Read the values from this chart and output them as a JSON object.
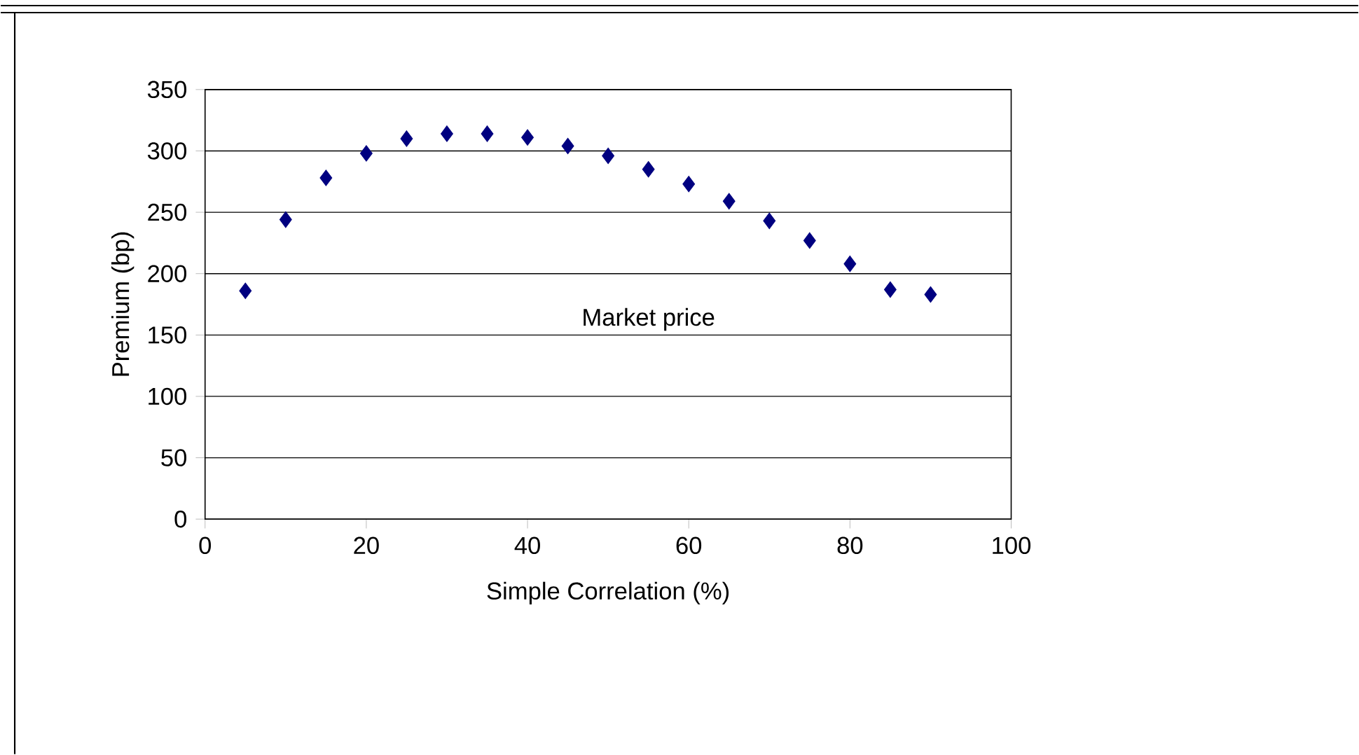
{
  "chart_data": {
    "type": "scatter",
    "xlabel": "Simple Correlation (%)",
    "ylabel": "Premium (bp)",
    "x": [
      5,
      10,
      15,
      20,
      25,
      30,
      35,
      40,
      45,
      50,
      55,
      60,
      65,
      70,
      75,
      80,
      85,
      90
    ],
    "series": [
      {
        "name": "Market price",
        "color": "#000080",
        "values": [
          186,
          244,
          278,
          298,
          310,
          314,
          314,
          311,
          304,
          296,
          285,
          273,
          259,
          243,
          227,
          208,
          187,
          183
        ]
      }
    ],
    "xlim": [
      0,
      100
    ],
    "xticks": [
      0,
      20,
      40,
      60,
      80,
      100
    ],
    "ylim": [
      0,
      350
    ],
    "yticks": [
      0,
      50,
      100,
      150,
      200,
      250,
      300,
      350
    ],
    "grid": "y",
    "marker": "diamond",
    "legend": false
  }
}
